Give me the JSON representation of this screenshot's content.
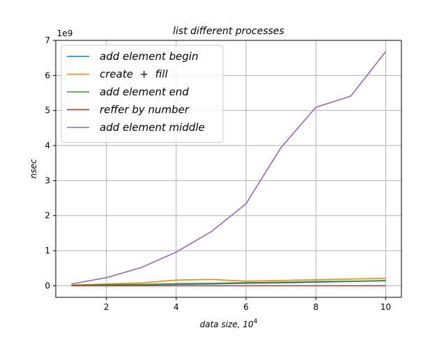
{
  "chart_data": {
    "type": "line",
    "title": "list different processes",
    "xlabel_main": "data size, 10",
    "xlabel_exp": "4",
    "ylabel": "nsec",
    "y_offset_label": "1e9",
    "xlim": [
      0.55,
      10.45
    ],
    "ylim": [
      -0.33,
      7.0
    ],
    "x_ticks": [
      2,
      4,
      6,
      8,
      10
    ],
    "x_tick_labels": [
      "2",
      "4",
      "6",
      "8",
      "10"
    ],
    "y_ticks": [
      0,
      1,
      2,
      3,
      4,
      5,
      6,
      7
    ],
    "y_tick_labels": [
      "0",
      "1",
      "2",
      "3",
      "4",
      "5",
      "6",
      "7"
    ],
    "grid": true,
    "legend_position": "top-left",
    "x": [
      1,
      2,
      3,
      4,
      5,
      6,
      7,
      8,
      9,
      10
    ],
    "series": [
      {
        "name": "add element begin",
        "color": "#1f77b4",
        "values": [
          0.01,
          0.02,
          0.03,
          0.04,
          0.05,
          0.07,
          0.08,
          0.1,
          0.12,
          0.14
        ]
      },
      {
        "name": "create  +  fill",
        "color": "#ff7f0e",
        "values": [
          0.02,
          0.05,
          0.08,
          0.16,
          0.18,
          0.13,
          0.15,
          0.17,
          0.19,
          0.21
        ]
      },
      {
        "name": "add element end",
        "color": "#2ca02c",
        "values": [
          0.01,
          0.03,
          0.04,
          0.06,
          0.07,
          0.09,
          0.1,
          0.12,
          0.13,
          0.15
        ]
      },
      {
        "name": "reffer by number",
        "color": "#d62728",
        "values": [
          0.0,
          0.0,
          0.0,
          0.0,
          0.0,
          0.0,
          0.0,
          0.0,
          0.0,
          0.0
        ]
      },
      {
        "name": "add element middle",
        "color": "#9467bd",
        "values": [
          0.05,
          0.23,
          0.52,
          0.96,
          1.54,
          2.34,
          3.94,
          5.09,
          5.41,
          6.68
        ]
      }
    ]
  }
}
